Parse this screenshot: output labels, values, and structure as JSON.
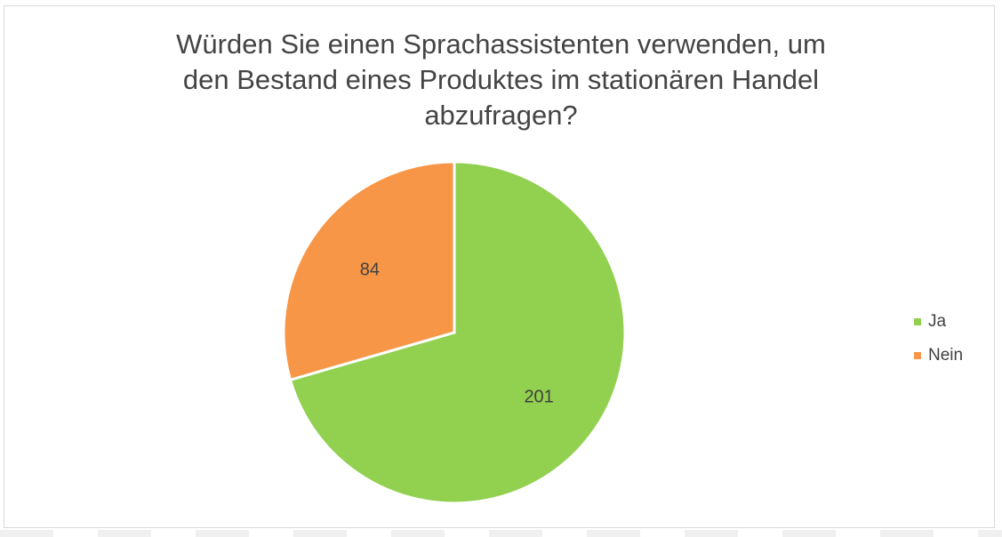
{
  "chart_data": {
    "type": "pie",
    "title_lines": [
      "Würden Sie einen Sprachassistenten verwenden, um",
      "den Bestand eines Produktes im stationären Handel",
      "abzufragen?"
    ],
    "categories": [
      "Ja",
      "Nein"
    ],
    "values": [
      201,
      84
    ],
    "data_labels": [
      "201",
      "84"
    ],
    "colors": [
      "#92d050",
      "#f79646"
    ],
    "legend_position": "right"
  }
}
